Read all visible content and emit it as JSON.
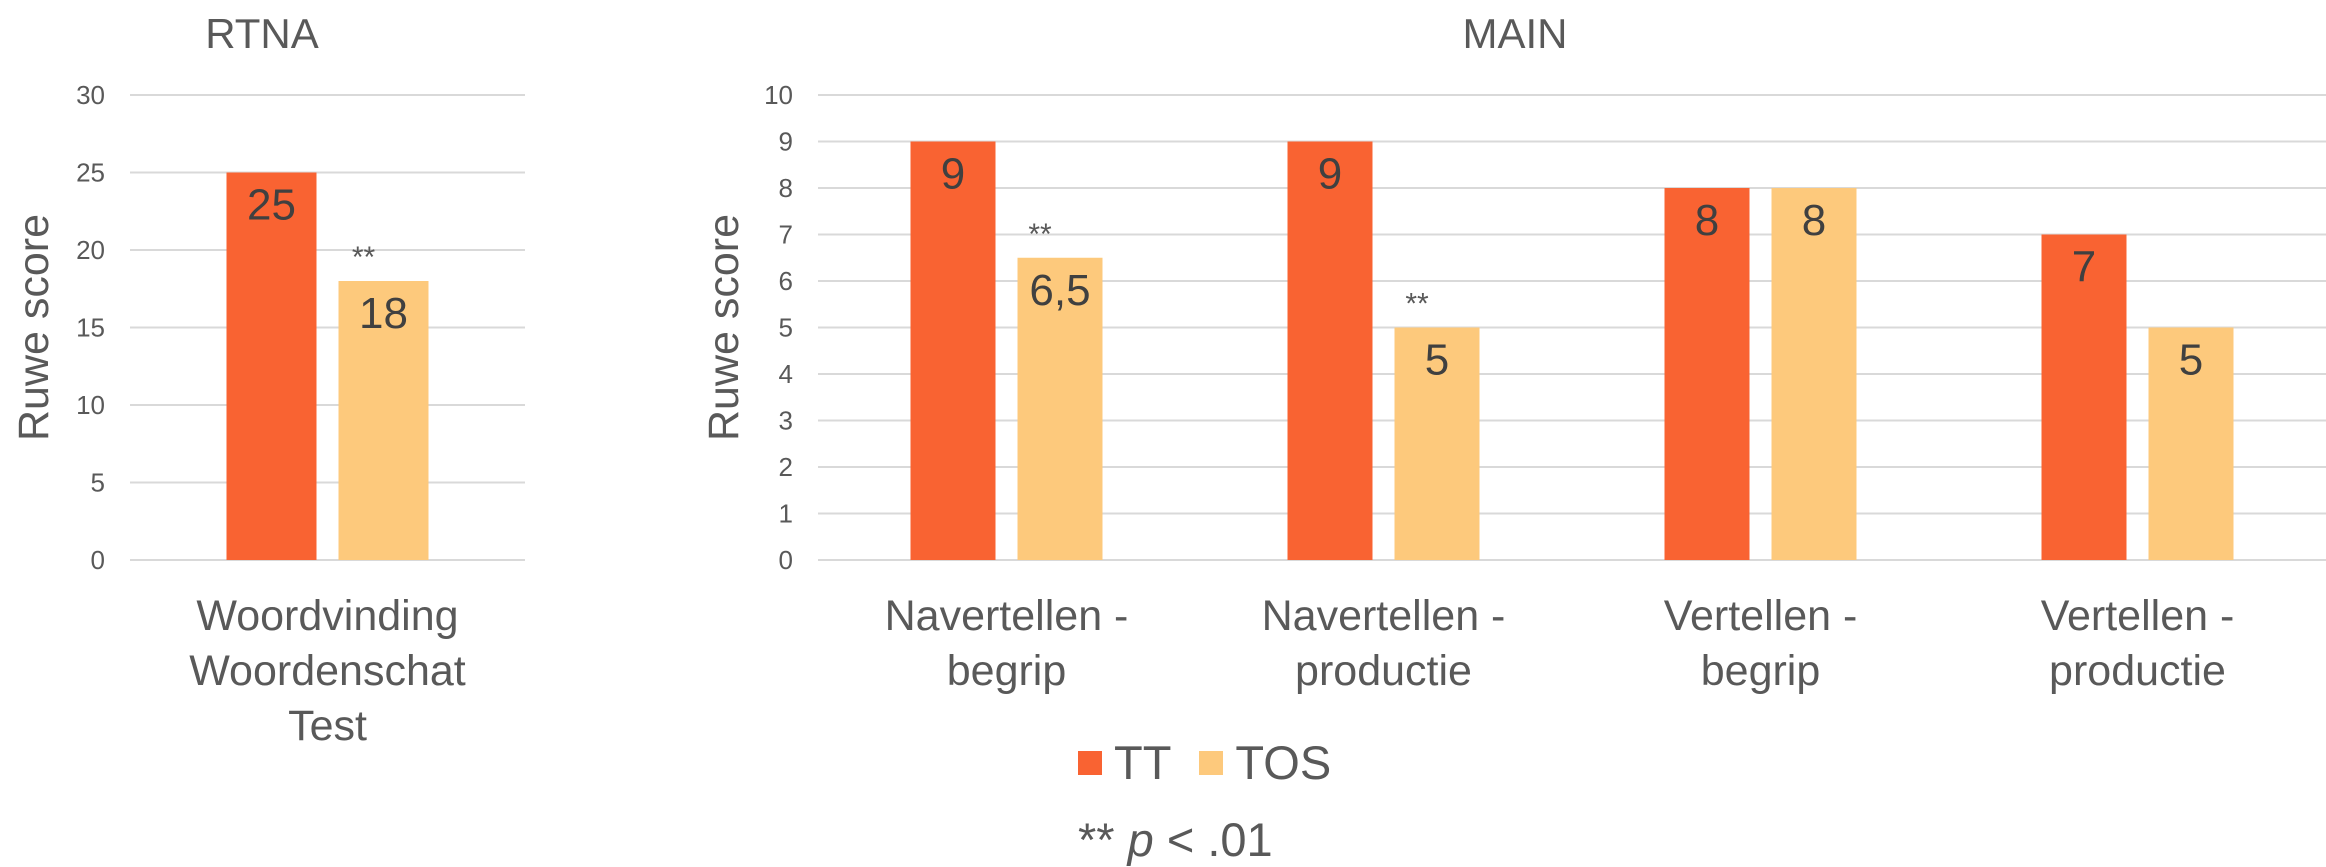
{
  "colors": {
    "TT": "#F96332",
    "TOS": "#FDC97C",
    "grid": "#D9D9D9",
    "text": "#595959",
    "label": "#404040"
  },
  "significance_marker": "**",
  "chart_data": [
    {
      "type": "bar",
      "title": "RTNA",
      "ylabel": "Ruwe score",
      "ylim": [
        0,
        30
      ],
      "yticks": [
        0,
        5,
        10,
        15,
        20,
        25,
        30
      ],
      "categories": [
        [
          "Woordvinding",
          "Woordenschat",
          "Test"
        ]
      ],
      "series": [
        {
          "name": "TT",
          "values": [
            25
          ],
          "labels": [
            "25"
          ]
        },
        {
          "name": "TOS",
          "values": [
            18
          ],
          "labels": [
            "18"
          ],
          "significance": [
            "**"
          ]
        }
      ],
      "grid": true
    },
    {
      "type": "bar",
      "title": "MAIN",
      "ylabel": "Ruwe score",
      "ylim": [
        0,
        10
      ],
      "yticks": [
        0,
        1,
        2,
        3,
        4,
        5,
        6,
        7,
        8,
        9,
        10
      ],
      "categories": [
        [
          "Navertellen -",
          "begrip"
        ],
        [
          "Navertellen -",
          "productie"
        ],
        [
          "Vertellen -",
          "begrip"
        ],
        [
          "Vertellen -",
          "productie"
        ]
      ],
      "series": [
        {
          "name": "TT",
          "values": [
            9,
            9,
            8,
            7
          ],
          "labels": [
            "9",
            "9",
            "8",
            "7"
          ]
        },
        {
          "name": "TOS",
          "values": [
            6.5,
            5,
            8,
            5
          ],
          "labels": [
            "6,5",
            "5",
            "8",
            "5"
          ],
          "significance": [
            "**",
            "**",
            "",
            ""
          ]
        }
      ],
      "grid": true,
      "legend": "bottom"
    }
  ],
  "legend": {
    "items": [
      {
        "name": "TT"
      },
      {
        "name": "TOS"
      }
    ]
  },
  "footnote": {
    "prefix": "** ",
    "italic": "p",
    "suffix": " < .01"
  }
}
